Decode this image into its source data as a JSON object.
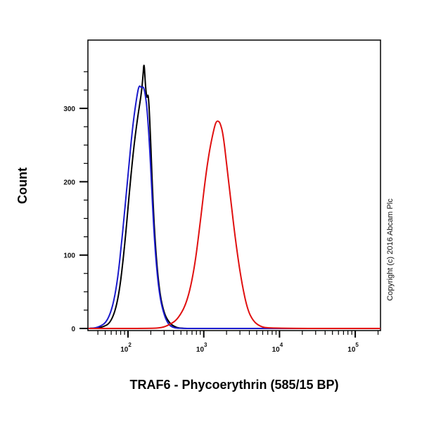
{
  "chart_data": {
    "type": "line",
    "subtype": "flow-cytometry-histogram",
    "title": "",
    "xlabel": "TRAF6 - Phycoerythrin (585/15 BP)",
    "ylabel": "Count",
    "xscale": "log",
    "xlim": [
      30,
      215000
    ],
    "ylim": [
      0,
      390
    ],
    "x_ticks": [
      {
        "value": 100,
        "label": "10",
        "exp": "2"
      },
      {
        "value": 1000,
        "label": "10",
        "exp": "3"
      },
      {
        "value": 10000,
        "label": "10",
        "exp": "4"
      },
      {
        "value": 100000,
        "label": "10",
        "exp": "5"
      }
    ],
    "y_ticks": [
      0,
      100,
      200,
      300
    ],
    "grid": false,
    "legend": null,
    "annotation": "Copyright (c) 2016 Abcam Plc",
    "series": [
      {
        "name": "Black",
        "color": "#000000",
        "x": [
          30,
          45,
          60,
          75,
          90,
          105,
          120,
          135,
          150,
          158,
          163,
          170,
          178,
          185,
          195,
          210,
          230,
          260,
          300,
          350,
          400,
          480,
          1000,
          215000
        ],
        "y": [
          0,
          1,
          8,
          40,
          110,
          190,
          250,
          290,
          320,
          345,
          365,
          330,
          312,
          322,
          280,
          190,
          110,
          50,
          20,
          8,
          3,
          0,
          0,
          0
        ]
      },
      {
        "name": "Blue",
        "color": "#1a1acc",
        "x": [
          30,
          40,
          55,
          70,
          85,
          100,
          115,
          130,
          140,
          150,
          160,
          170,
          180,
          195,
          210,
          230,
          260,
          300,
          340,
          380,
          450,
          1000,
          215000
        ],
        "y": [
          0,
          1,
          10,
          50,
          130,
          210,
          275,
          315,
          332,
          328,
          330,
          318,
          295,
          240,
          170,
          100,
          45,
          18,
          6,
          2,
          0,
          0,
          0
        ]
      },
      {
        "name": "Red",
        "color": "#e01010",
        "x": [
          30,
          200,
          280,
          350,
          450,
          600,
          750,
          900,
          1050,
          1200,
          1350,
          1450,
          1550,
          1650,
          1800,
          2000,
          2300,
          2700,
          3200,
          3800,
          4500,
          5500,
          7000,
          215000
        ],
        "y": [
          0,
          0,
          1,
          5,
          12,
          35,
          80,
          145,
          205,
          245,
          270,
          282,
          283,
          280,
          265,
          225,
          170,
          110,
          60,
          25,
          10,
          3,
          0,
          0
        ]
      }
    ]
  },
  "labels": {
    "ylabel": "Count",
    "xlabel": "TRAF6 - Phycoerythrin (585/15 BP)",
    "copyright": "Copyright (c) 2016 Abcam Plc",
    "y_ticks": [
      "0",
      "100",
      "200",
      "300"
    ],
    "x_base": "10",
    "x_exps": [
      "2",
      "3",
      "4",
      "5"
    ]
  }
}
